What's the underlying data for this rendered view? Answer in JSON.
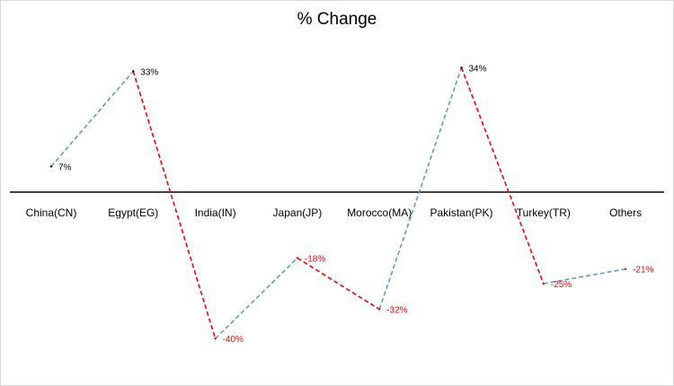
{
  "chart_data": {
    "type": "line",
    "title": "% Change",
    "categories": [
      "China(CN)",
      "Egypt(EG)",
      "India(IN)",
      "Japan(JP)",
      "Morocco(MA)",
      "Pakistan(PK)",
      "Turkey(TR)",
      "Others"
    ],
    "values": [
      7,
      33,
      -40,
      -18,
      -32,
      34,
      -25,
      -21
    ],
    "data_labels": [
      "7%",
      "33%",
      "-40%",
      "-18%",
      "-32%",
      "34%",
      "-25%",
      "-21%"
    ],
    "xlabel": "",
    "ylabel": "",
    "ylim": [
      -45,
      40
    ],
    "grid": false,
    "line_style": "dashed",
    "colors": {
      "increase": "#5b9bd5",
      "decrease": "#ff0000",
      "axis": "#000000",
      "positive_label": "#000000",
      "negative_label": "#ff0000"
    }
  }
}
